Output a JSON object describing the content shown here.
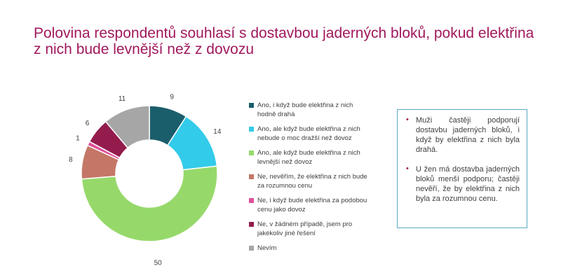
{
  "title": "Polovina respondentů souhlasí s dostavbou jaderných bloků, pokud elektřina z nich bude levnější než z dovozu",
  "chart_data": {
    "type": "pie",
    "donut": true,
    "legend_position": "right",
    "slices": [
      {
        "label": "Ano, i když bude elektřina z nich hodně drahá",
        "value": 9,
        "color": "#1b5e6b"
      },
      {
        "label": "Ano, ale když bude elektřina z nich nebude o moc dražší než dovoz",
        "value": 14,
        "color": "#33cbea"
      },
      {
        "label": "Ano, ale když bude elektřina z nich levnější než dovoz",
        "value": 50,
        "color": "#96d96a"
      },
      {
        "label": "Ne, nevěřím, že elektřina z nich bude za rozumnou cenu",
        "value": 8,
        "color": "#c47766"
      },
      {
        "label": "Ne, i když bude elektřina za podobou cenu jako dovoz",
        "value": 1,
        "color": "#e0509a"
      },
      {
        "label": "Ne, v žádném případě, jsem pro jakékoliv jiné řešení",
        "value": 6,
        "color": "#931c4d"
      },
      {
        "label": "Nevím",
        "value": 11,
        "color": "#a6a6a6"
      }
    ]
  },
  "notes": [
    "Muži častěji podporují dostavbu jaderných bloků, i když by elektřina z nich byla drahá.",
    "U žen má dostavba jaderných bloků menší podporu; častěji nevěří, že by elektřina z nich byla za rozumnou cenu."
  ]
}
